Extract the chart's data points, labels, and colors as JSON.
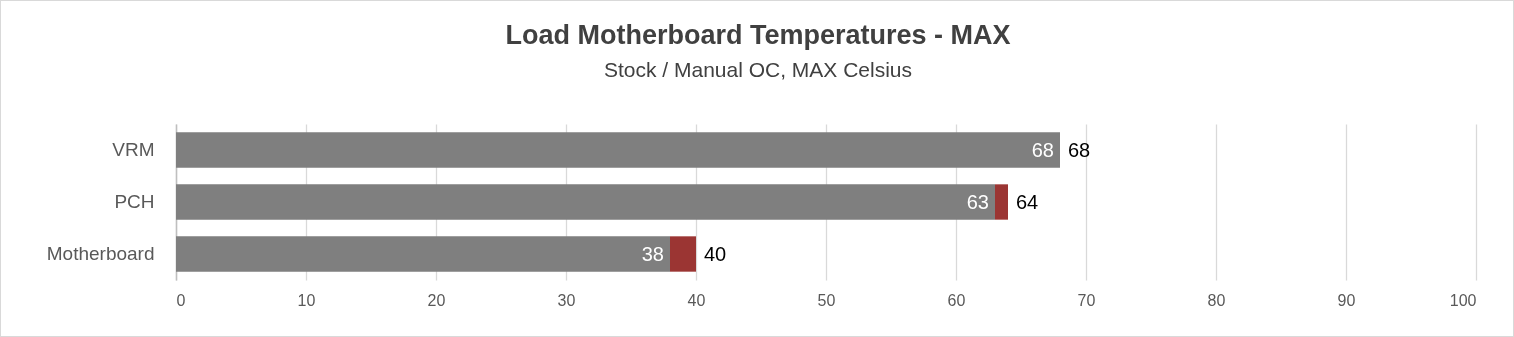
{
  "chart_data": {
    "type": "bar",
    "orientation": "horizontal",
    "stacked": true,
    "title": "Load Motherboard Temperatures - MAX",
    "subtitle": "Stock / Manual OC, MAX Celsius",
    "categories": [
      "VRM",
      "PCH",
      "Motherboard"
    ],
    "series": [
      {
        "color": "#7f7f7f",
        "values": [
          68,
          63,
          38
        ],
        "value_labels": [
          "68",
          "63",
          "38"
        ]
      },
      {
        "color": "#9b3533",
        "values": [
          null,
          1,
          2
        ]
      }
    ],
    "totals": [
      "68",
      "64",
      "40"
    ],
    "xlim": [
      0,
      100
    ],
    "xticks": [
      0,
      10,
      20,
      30,
      40,
      50,
      60,
      70,
      80,
      90,
      100
    ],
    "grid": "x",
    "legend": false
  }
}
